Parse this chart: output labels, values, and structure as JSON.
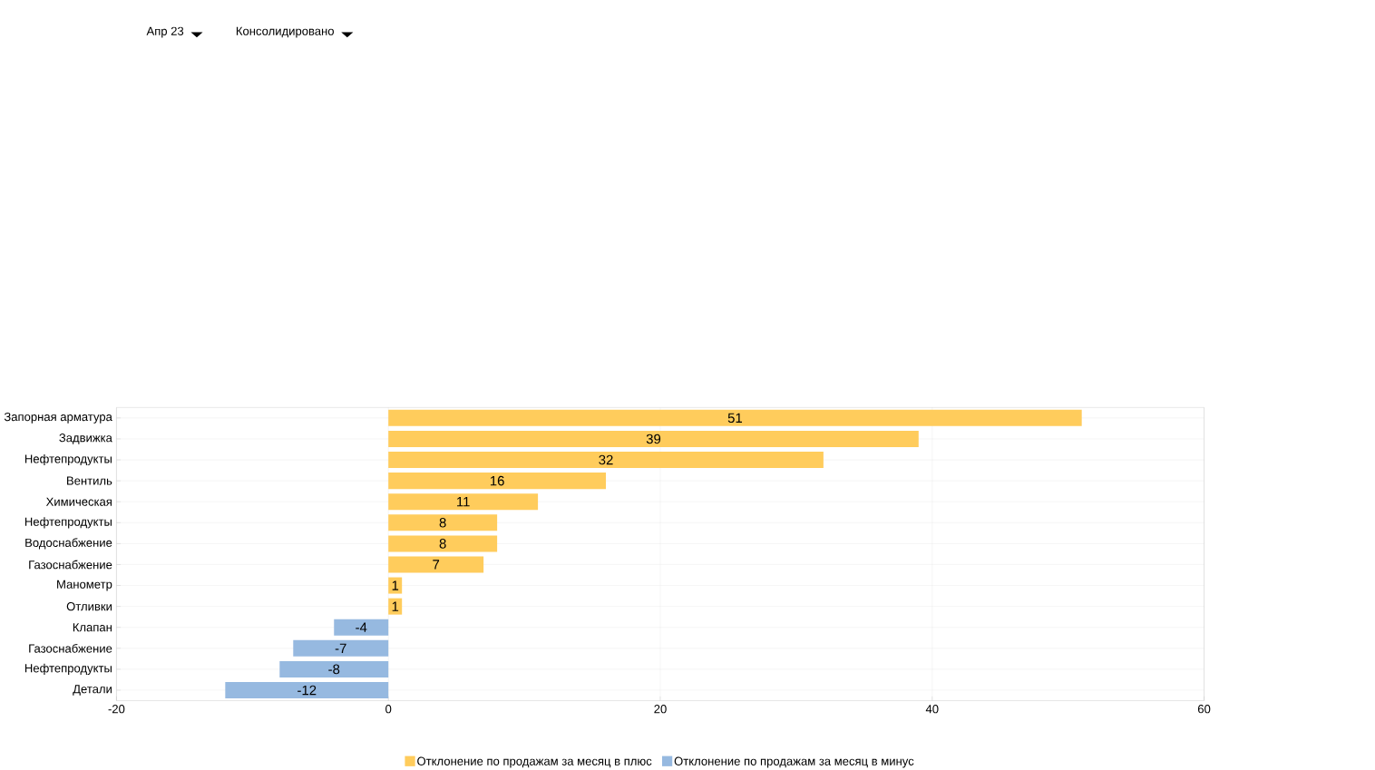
{
  "chart_data": {
    "type": "bar",
    "orientation": "horizontal",
    "annotations": [
      "Апр 23",
      "Консолидировано"
    ],
    "categories": [
      "Запорная арматура",
      "Задвижка",
      "Нефтепродукты",
      "Вентиль",
      "Химическая",
      "Нефтепродукты",
      "Водоснабжение",
      "Газоснабжение",
      "Манометр",
      "Отливки",
      "Клапан",
      "Газоснабжение",
      "Нефтепродукты",
      "Детали"
    ],
    "series": [
      {
        "name": "Отклонение по продажам за месяц в плюс",
        "color": "#ffcc5c",
        "values": [
          51,
          39,
          32,
          16,
          11,
          8,
          8,
          7,
          1,
          1,
          null,
          null,
          null,
          null
        ]
      },
      {
        "name": "Отклонение по продажам за месяц в минус",
        "color": "#96b9e0",
        "values": [
          null,
          null,
          null,
          null,
          null,
          null,
          null,
          null,
          null,
          null,
          -4,
          -7,
          -8,
          -12
        ]
      }
    ],
    "xlim": [
      -20,
      60
    ],
    "xticks": [
      -20,
      0,
      20,
      40,
      60
    ],
    "grid": true,
    "legend": "bottom",
    "data_labels": true
  }
}
